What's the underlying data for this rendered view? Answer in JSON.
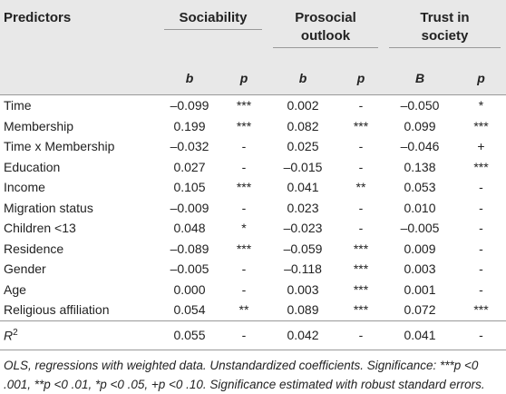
{
  "table": {
    "header": {
      "predictors": "Predictors",
      "groups": [
        [
          "Sociability"
        ],
        [
          "Prosocial",
          "outlook"
        ],
        [
          "Trust in",
          "society"
        ]
      ],
      "subheads": [
        "b",
        "p",
        "b",
        "p",
        "B",
        "p"
      ]
    },
    "rows": [
      [
        "Time",
        "–0.099",
        "***",
        "0.002",
        "-",
        "–0.050",
        "*"
      ],
      [
        "Membership",
        "0.199",
        "***",
        "0.082",
        "***",
        "0.099",
        "***"
      ],
      [
        "Time x Membership",
        "–0.032",
        "-",
        "0.025",
        "-",
        "–0.046",
        "+"
      ],
      [
        "Education",
        "0.027",
        "-",
        "–0.015",
        "-",
        "0.138",
        "***"
      ],
      [
        "Income",
        "0.105",
        "***",
        "0.041",
        "**",
        "0.053",
        "-"
      ],
      [
        "Migration status",
        "–0.009",
        "-",
        "0.023",
        "-",
        "0.010",
        "-"
      ],
      [
        "Children <13",
        "0.048",
        "*",
        "–0.023",
        "-",
        "–0.005",
        "-"
      ],
      [
        "Residence",
        "–0.089",
        "***",
        "–0.059",
        "***",
        "0.009",
        "-"
      ],
      [
        "Gender",
        "–0.005",
        "-",
        "–0.118",
        "***",
        "0.003",
        "-"
      ],
      [
        "Age",
        "0.000",
        "-",
        "0.003",
        "***",
        "0.001",
        "-"
      ],
      [
        "Religious affiliation",
        "0.054",
        "**",
        "0.089",
        "***",
        "0.072",
        "***"
      ]
    ],
    "r2": {
      "label": "R",
      "sup": "2",
      "values": [
        "0.055",
        "-",
        "0.042",
        "-",
        "0.041",
        "-"
      ]
    }
  },
  "footnote": "OLS, regressions with weighted data. Unstandardized coefficients. Significance: ***p <0 .001, **p <0 .01, *p <0 .05, +p <0 .10. Significance estimated with robust standard errors."
}
